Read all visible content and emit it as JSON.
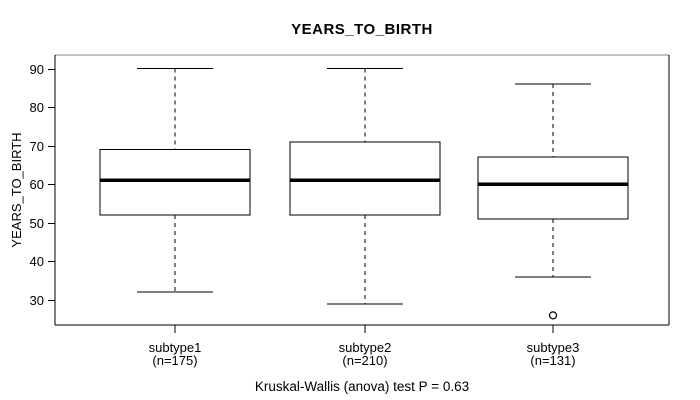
{
  "title": "YEARS_TO_BIRTH",
  "footer": "Kruskal-Wallis (anova) test P = 0.63",
  "colors": {
    "line": "#000000",
    "frame_top": "#808080",
    "text": "#000000",
    "background": "#ffffff",
    "box_fill": "#ffffff"
  },
  "chart_data": {
    "type": "boxplot",
    "title": "YEARS_TO_BIRTH",
    "ylabel": "YEARS_TO_BIRTH",
    "xlabel": "",
    "ylim": [
      23.5,
      93.5
    ],
    "y_ticks": [
      30,
      40,
      50,
      60,
      70,
      80,
      90
    ],
    "grid": false,
    "legend": false,
    "categories": [
      "subtype1",
      "subtype2",
      "subtype3"
    ],
    "category_sublabels": [
      "(n=175)",
      "(n=210)",
      "(n=131)"
    ],
    "series": [
      {
        "name": "subtype1",
        "n": 175,
        "whisker_low": 32,
        "q1": 52,
        "median": 61,
        "q3": 69,
        "whisker_high": 90,
        "outliers": []
      },
      {
        "name": "subtype2",
        "n": 210,
        "whisker_low": 29,
        "q1": 52,
        "median": 61,
        "q3": 71,
        "whisker_high": 90,
        "outliers": []
      },
      {
        "name": "subtype3",
        "n": 131,
        "whisker_low": 36,
        "q1": 51,
        "median": 60,
        "q3": 67,
        "whisker_high": 86,
        "outliers": [
          26
        ]
      }
    ],
    "annotation": "Kruskal-Wallis (anova) test P = 0.63",
    "p_value": 0.63
  }
}
